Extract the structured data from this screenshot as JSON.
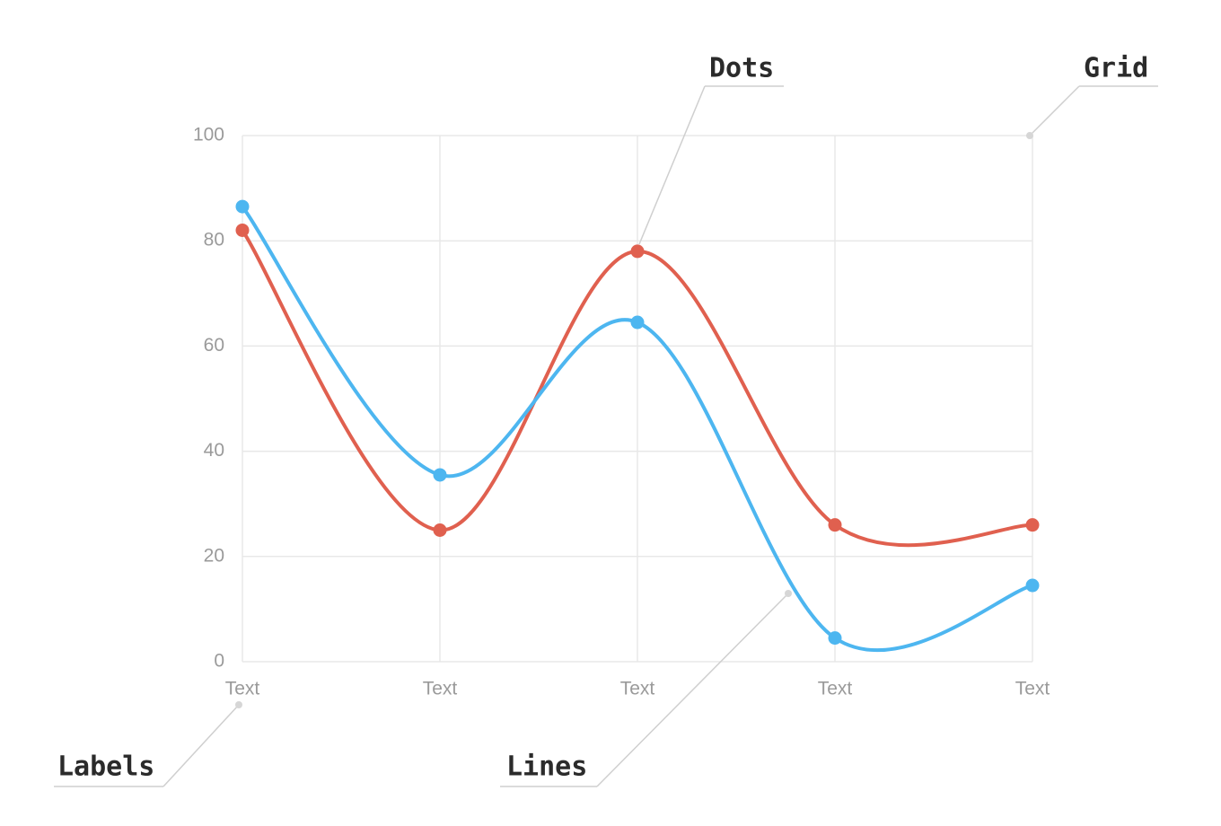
{
  "chart_data": {
    "type": "line",
    "categories": [
      "Text",
      "Text",
      "Text",
      "Text",
      "Text"
    ],
    "series": [
      {
        "color": "#e0604f",
        "values": [
          82,
          25,
          78,
          26,
          26
        ]
      },
      {
        "color": "#4db6f0",
        "values": [
          86.5,
          35.5,
          64.5,
          4.5,
          14.5
        ]
      }
    ],
    "ylim": [
      0,
      100
    ],
    "yticks": [
      0,
      20,
      40,
      60,
      80,
      100
    ],
    "grid": true,
    "smooth": true,
    "annotations": [
      "Dots",
      "Grid",
      "Labels",
      "Lines"
    ]
  }
}
